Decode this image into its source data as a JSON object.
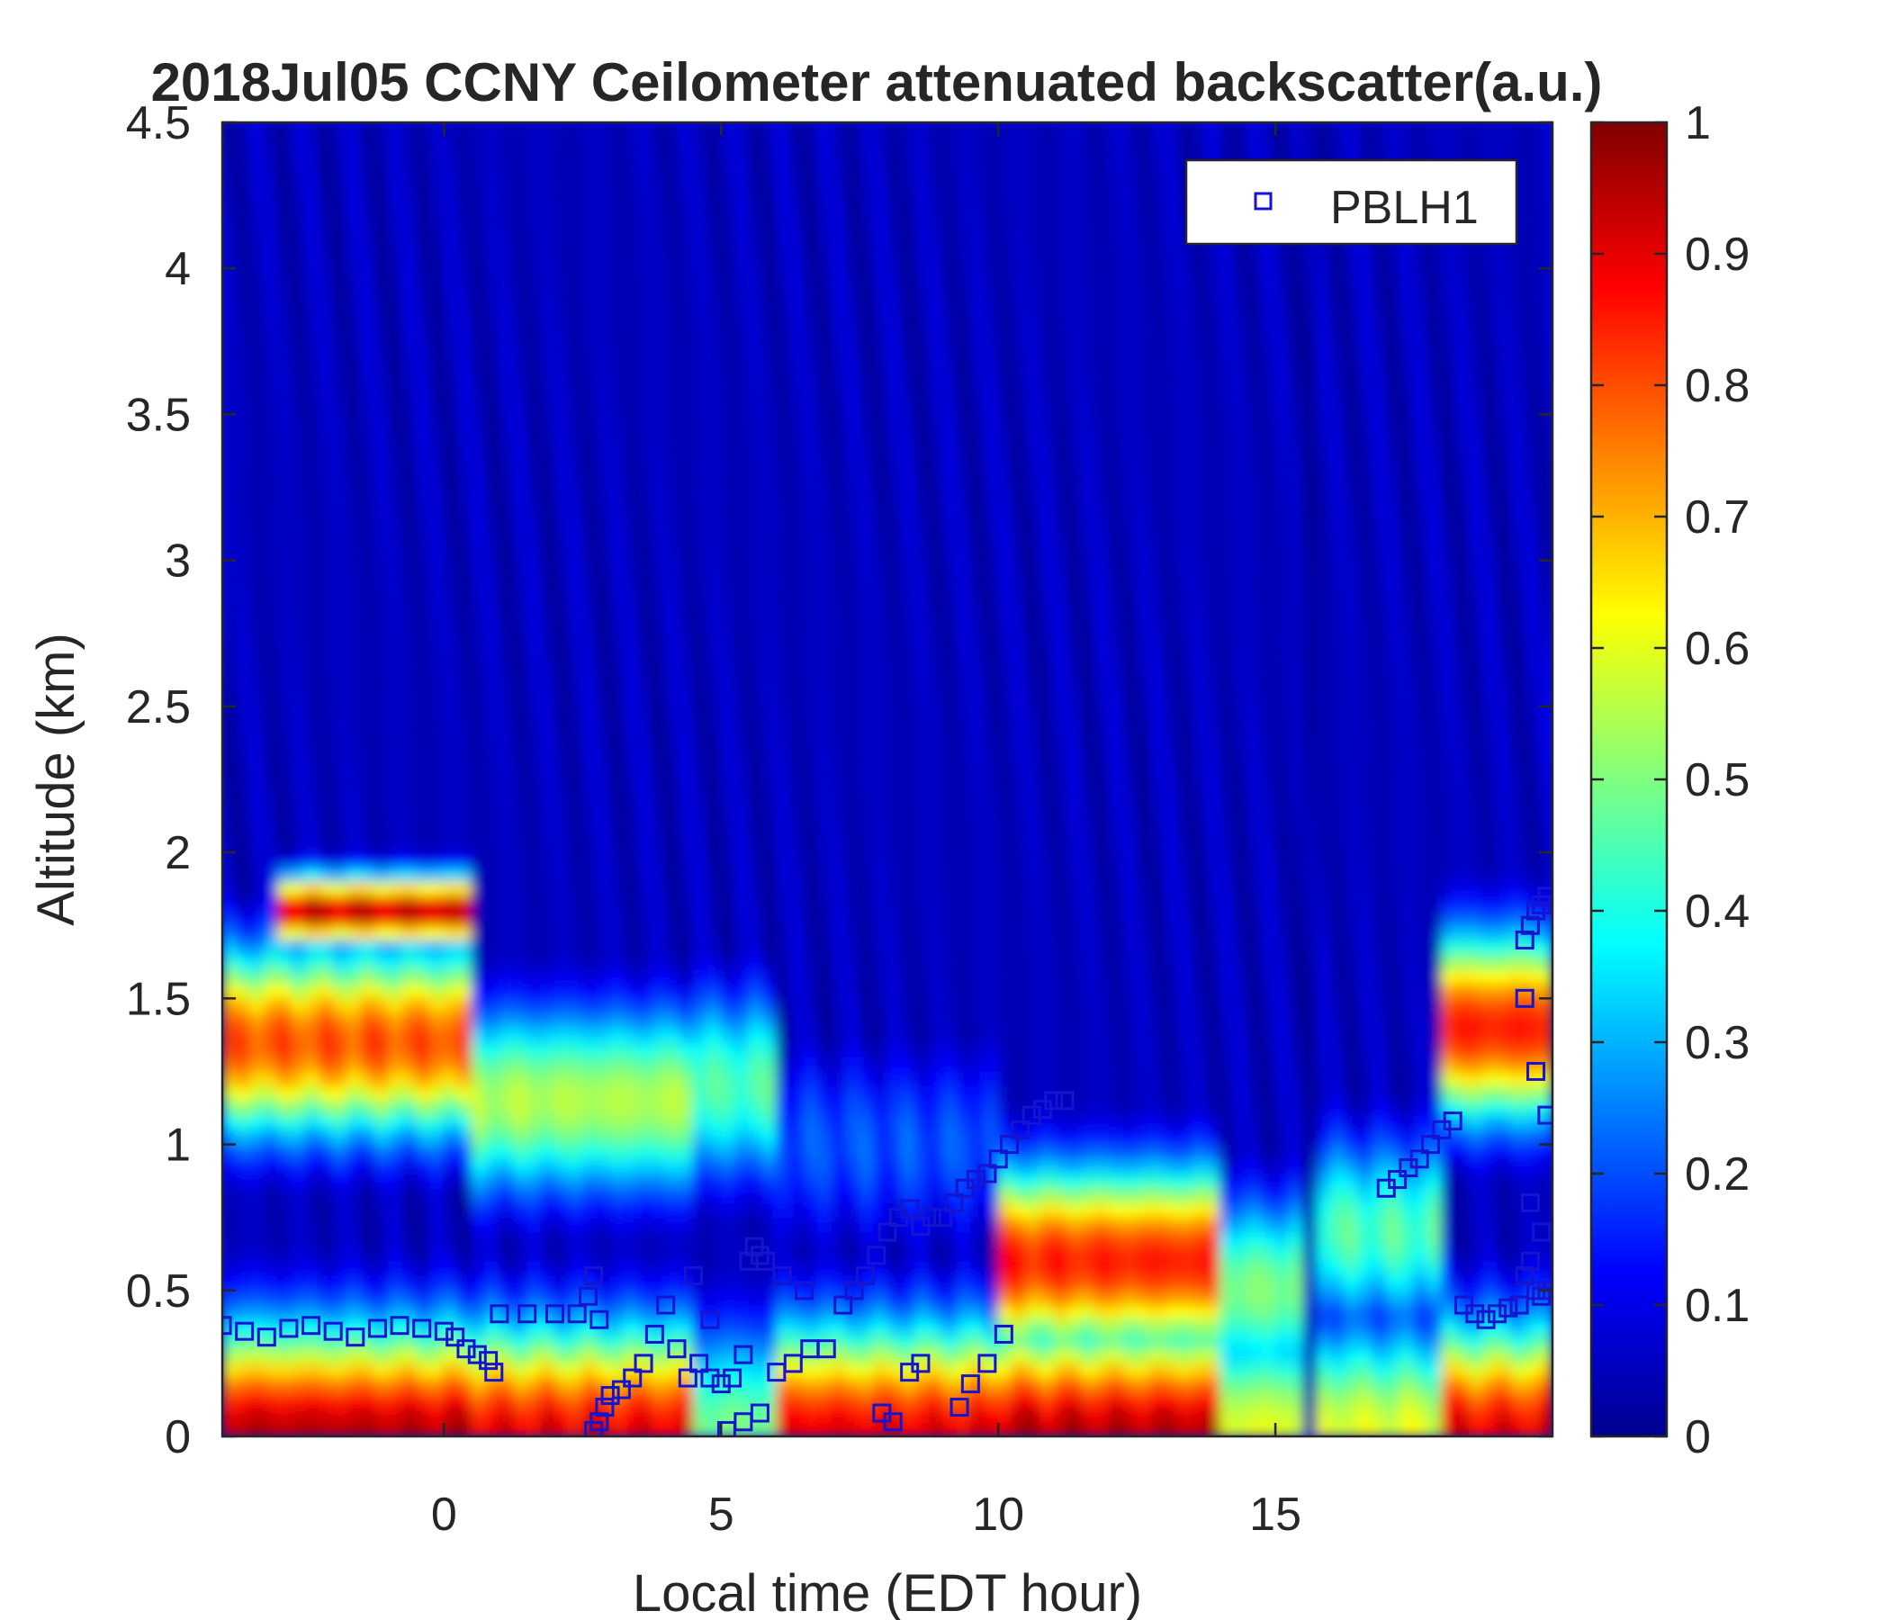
{
  "chart_data": {
    "type": "heatmap",
    "title": "2018Jul05 CCNY Ceilometer attenuated backscatter(a.u.)",
    "xlabel": "Local time (EDT hour)",
    "ylabel": "Altitude (km)",
    "xlim": [
      -4,
      20
    ],
    "ylim": [
      0,
      4.5
    ],
    "x_ticks": [
      "0",
      "5",
      "10",
      "15"
    ],
    "y_ticks": [
      "0",
      "0.5",
      "1",
      "1.5",
      "2",
      "2.5",
      "3",
      "3.5",
      "4",
      "4.5"
    ],
    "colorbar": {
      "ticks": [
        "0",
        "0.1",
        "0.2",
        "0.3",
        "0.4",
        "0.5",
        "0.6",
        "0.7",
        "0.8",
        "0.9",
        "1"
      ],
      "range": [
        0,
        1
      ],
      "colormap": "jet"
    },
    "legend": {
      "placement": "top-right",
      "entries": [
        "PBLH1"
      ]
    },
    "heatmap_description": {
      "bands": [
        {
          "x": [
            -4.0,
            0.5
          ],
          "low_z": 0.95,
          "mid_alt_km": 1.35,
          "mid_z": 0.8,
          "resid_alt_km": 1.8
        },
        {
          "x": [
            0.5,
            4.5
          ],
          "low_z": 0.9,
          "mid_alt_km": 1.15,
          "mid_z": 0.55
        },
        {
          "x": [
            4.5,
            6.0
          ],
          "low_z": 0.5,
          "mid_alt_km": 1.2,
          "mid_z": 0.45
        },
        {
          "x": [
            6.0,
            10.0
          ],
          "low_z": 0.9,
          "mid_alt_km": 1.0,
          "mid_z": 0.2
        },
        {
          "x": [
            10.0,
            14.0
          ],
          "low_z": 0.95,
          "mid_alt_km": 0.6,
          "mid_z": 0.85
        },
        {
          "x": [
            14.0,
            15.6
          ],
          "low_z": 0.6,
          "mid_alt_km": 0.5,
          "mid_z": 0.5
        },
        {
          "x": [
            15.8,
            18.0
          ],
          "low_z": 0.6,
          "mid_alt_km": 0.7,
          "mid_z": 0.45
        },
        {
          "x": [
            18.0,
            20.0
          ],
          "low_z": 0.9,
          "mid_alt_km": 1.4,
          "mid_z": 0.85
        }
      ],
      "clear_sky_z": 0.05
    },
    "series": [
      {
        "name": "PBLH1",
        "marker": "square",
        "color": "#1414d2",
        "x": [
          -4.0,
          -3.6,
          -3.2,
          -2.8,
          -2.4,
          -2.0,
          -1.6,
          -1.2,
          -0.8,
          -0.4,
          0.0,
          0.2,
          0.4,
          0.6,
          0.8,
          0.9,
          1.0,
          1.5,
          2.0,
          2.4,
          2.6,
          2.7,
          2.8,
          2.9,
          3.0,
          3.2,
          3.4,
          3.6,
          3.8,
          4.0,
          4.2,
          4.4,
          4.6,
          4.8,
          5.0,
          5.2,
          5.4,
          5.5,
          5.6,
          5.7,
          5.8,
          6.0,
          6.3,
          6.6,
          6.9,
          7.2,
          7.4,
          7.6,
          7.8,
          8.0,
          8.2,
          8.4,
          8.6,
          8.8,
          9.0,
          9.2,
          9.4,
          9.6,
          9.8,
          10.0,
          10.2,
          10.4,
          10.6,
          10.8,
          11.0,
          11.2,
          2.7,
          2.8,
          4.5,
          4.8,
          5.1,
          5.4,
          5.7,
          6.1,
          6.5,
          7.9,
          8.1,
          8.4,
          8.6,
          9.3,
          9.5,
          9.8,
          10.1,
          17.0,
          17.2,
          17.4,
          17.6,
          17.8,
          18.0,
          18.2,
          18.4,
          18.6,
          18.8,
          19.0,
          19.2,
          19.4,
          19.5,
          19.6,
          19.7,
          19.8,
          19.9,
          19.4,
          19.5,
          19.6,
          19.7,
          19.8,
          19.9,
          19.5,
          19.7,
          19.9,
          19.6,
          19.8
        ],
        "y": [
          0.38,
          0.36,
          0.34,
          0.37,
          0.38,
          0.36,
          0.34,
          0.37,
          0.38,
          0.37,
          0.36,
          0.34,
          0.3,
          0.28,
          0.26,
          0.22,
          0.42,
          0.42,
          0.42,
          0.42,
          0.48,
          0.55,
          0.4,
          0.1,
          0.14,
          0.16,
          0.2,
          0.25,
          0.35,
          0.45,
          0.3,
          0.2,
          0.25,
          0.2,
          0.18,
          0.2,
          0.28,
          0.6,
          0.65,
          0.62,
          0.6,
          0.22,
          0.25,
          0.3,
          0.3,
          0.45,
          0.5,
          0.55,
          0.62,
          0.7,
          0.75,
          0.78,
          0.72,
          0.75,
          0.75,
          0.8,
          0.85,
          0.88,
          0.9,
          0.95,
          1.0,
          1.05,
          1.1,
          1.12,
          1.15,
          1.15,
          0.02,
          0.05,
          0.55,
          0.4,
          0.02,
          0.05,
          0.08,
          0.55,
          0.5,
          0.08,
          0.05,
          0.22,
          0.25,
          0.1,
          0.18,
          0.25,
          0.35,
          0.85,
          0.88,
          0.92,
          0.95,
          1.0,
          1.05,
          1.08,
          0.45,
          0.42,
          0.4,
          0.42,
          0.44,
          0.45,
          1.7,
          1.75,
          1.8,
          1.82,
          1.85,
          0.45,
          0.55,
          0.6,
          0.5,
          0.48,
          0.5,
          1.5,
          1.25,
          1.1,
          0.8,
          0.7
        ]
      }
    ]
  }
}
